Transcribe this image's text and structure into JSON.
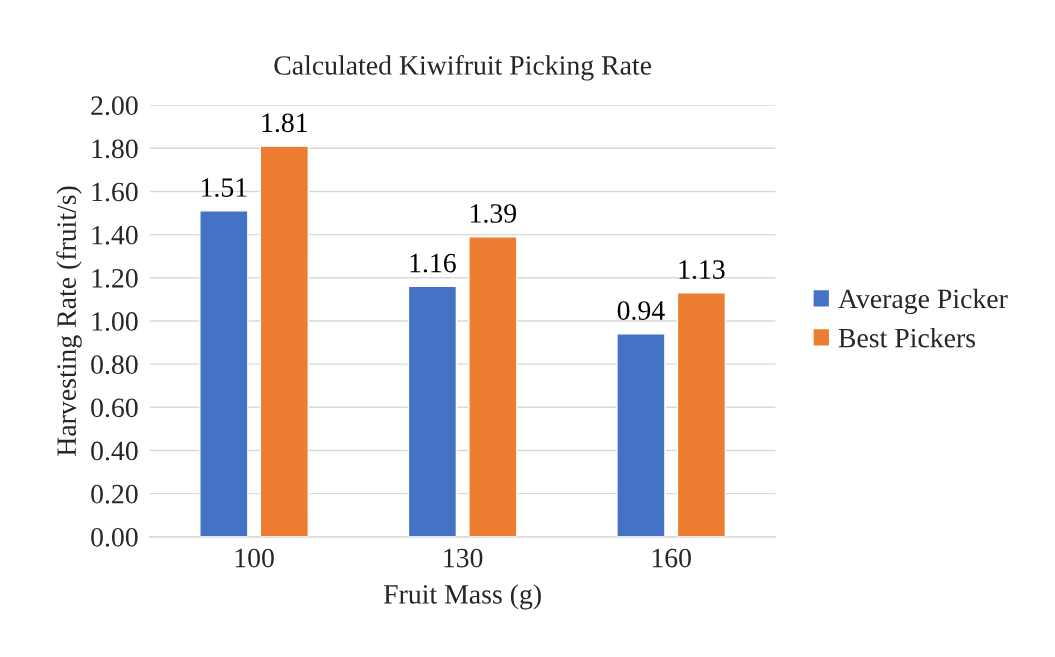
{
  "chart_data": {
    "type": "bar",
    "title": "Calculated Kiwifruit Picking Rate",
    "xlabel": "Fruit Mass (g)",
    "ylabel": "Harvesting Rate (fruit/s)",
    "categories": [
      "100",
      "130",
      "160"
    ],
    "series": [
      {
        "name": "Average Picker",
        "color": "#4472c4",
        "values": [
          1.51,
          1.16,
          0.94
        ]
      },
      {
        "name": "Best Pickers",
        "color": "#ed7d31",
        "values": [
          1.81,
          1.39,
          1.13
        ]
      }
    ],
    "ylim": [
      0,
      2
    ],
    "yticks": [
      {
        "value": 0,
        "label": "0.00"
      },
      {
        "value": 0.2,
        "label": "0.20"
      },
      {
        "value": 0.4,
        "label": "0.40"
      },
      {
        "value": 0.6,
        "label": "0.60"
      },
      {
        "value": 0.8,
        "label": "0.80"
      },
      {
        "value": 1.0,
        "label": "1.00"
      },
      {
        "value": 1.2,
        "label": "1.20"
      },
      {
        "value": 1.4,
        "label": "1.40"
      },
      {
        "value": 1.6,
        "label": "1.60"
      },
      {
        "value": 1.8,
        "label": "1.80"
      },
      {
        "value": 2.0,
        "label": "2.00"
      }
    ],
    "grid": "y",
    "legend": "right",
    "data_labels": true
  }
}
